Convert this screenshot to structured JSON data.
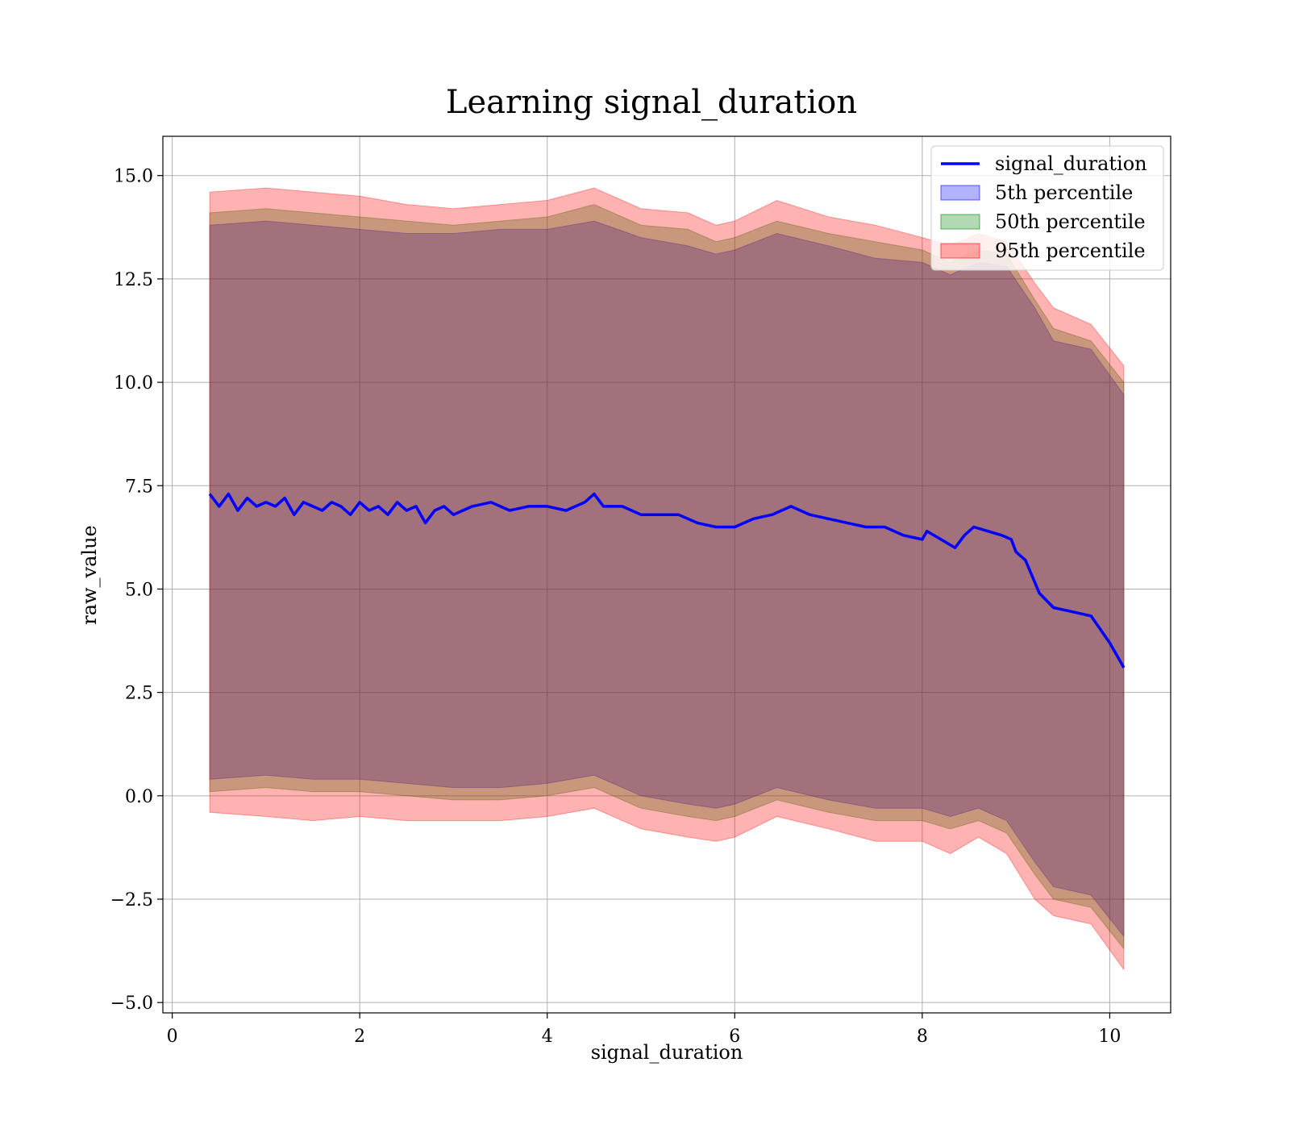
{
  "chart_data": {
    "type": "line",
    "title": "Learning signal_duration",
    "xlabel": "signal_duration",
    "ylabel": "raw_value",
    "xlim": [
      -0.1,
      10.65
    ],
    "ylim": [
      -5.25,
      15.95
    ],
    "x_ticks": [
      {
        "value": 0,
        "label": "0"
      },
      {
        "value": 2,
        "label": "2"
      },
      {
        "value": 4,
        "label": "4"
      },
      {
        "value": 6,
        "label": "6"
      },
      {
        "value": 8,
        "label": "8"
      },
      {
        "value": 10,
        "label": "10"
      }
    ],
    "y_ticks": [
      {
        "value": 15.0,
        "label": "15.0"
      },
      {
        "value": 12.5,
        "label": "12.5"
      },
      {
        "value": 10.0,
        "label": "10.0"
      },
      {
        "value": 7.5,
        "label": "7.5"
      },
      {
        "value": 5.0,
        "label": "5.0"
      },
      {
        "value": 2.5,
        "label": "2.5"
      },
      {
        "value": 0.0,
        "label": "0.0"
      },
      {
        "value": -2.5,
        "label": "−2.5"
      },
      {
        "value": -5.0,
        "label": "−5.0"
      }
    ],
    "grid": true,
    "legend_position": "top-right",
    "line": {
      "name": "signal_duration",
      "color": "#0000ff",
      "x": [
        0.4,
        0.5,
        0.6,
        0.7,
        0.8,
        0.9,
        1.0,
        1.1,
        1.2,
        1.3,
        1.4,
        1.5,
        1.6,
        1.7,
        1.8,
        1.9,
        2.0,
        2.1,
        2.2,
        2.3,
        2.4,
        2.5,
        2.6,
        2.7,
        2.8,
        2.9,
        3.0,
        3.2,
        3.4,
        3.6,
        3.8,
        4.0,
        4.2,
        4.4,
        4.5,
        4.6,
        4.8,
        5.0,
        5.2,
        5.4,
        5.6,
        5.8,
        6.0,
        6.2,
        6.4,
        6.6,
        6.8,
        7.0,
        7.2,
        7.4,
        7.6,
        7.8,
        8.0,
        8.05,
        8.2,
        8.35,
        8.45,
        8.55,
        8.7,
        8.85,
        8.95,
        9.0,
        9.1,
        9.25,
        9.4,
        9.6,
        9.8,
        10.0,
        10.15
      ],
      "y": [
        7.3,
        7.0,
        7.3,
        6.9,
        7.2,
        7.0,
        7.1,
        7.0,
        7.2,
        6.8,
        7.1,
        7.0,
        6.9,
        7.1,
        7.0,
        6.8,
        7.1,
        6.9,
        7.0,
        6.8,
        7.1,
        6.9,
        7.0,
        6.6,
        6.9,
        7.0,
        6.8,
        7.0,
        7.1,
        6.9,
        7.0,
        7.0,
        6.9,
        7.1,
        7.3,
        7.0,
        7.0,
        6.8,
        6.8,
        6.8,
        6.6,
        6.5,
        6.5,
        6.7,
        6.8,
        7.0,
        6.8,
        6.7,
        6.6,
        6.5,
        6.5,
        6.3,
        6.2,
        6.4,
        6.2,
        6.0,
        6.3,
        6.5,
        6.4,
        6.3,
        6.2,
        5.9,
        5.7,
        4.9,
        4.55,
        4.45,
        4.35,
        3.7,
        3.1
      ]
    },
    "series": [
      {
        "name": "5th percentile",
        "color": "#0000ff",
        "opacity": 0.3,
        "x": [
          0.4,
          1.0,
          1.5,
          2.0,
          2.5,
          3.0,
          3.5,
          4.0,
          4.5,
          5.0,
          5.5,
          5.8,
          6.0,
          6.45,
          7.0,
          7.5,
          8.0,
          8.3,
          8.6,
          8.9,
          9.2,
          9.4,
          9.8,
          10.15
        ],
        "upper": [
          13.8,
          13.9,
          13.8,
          13.7,
          13.6,
          13.6,
          13.7,
          13.7,
          13.9,
          13.5,
          13.3,
          13.1,
          13.2,
          13.6,
          13.3,
          13.0,
          12.9,
          12.6,
          12.9,
          12.8,
          11.8,
          11.0,
          10.8,
          9.7
        ],
        "lower": [
          0.4,
          0.5,
          0.4,
          0.4,
          0.3,
          0.2,
          0.2,
          0.3,
          0.5,
          0.0,
          -0.2,
          -0.3,
          -0.2,
          0.2,
          -0.1,
          -0.3,
          -0.3,
          -0.5,
          -0.3,
          -0.6,
          -1.6,
          -2.2,
          -2.4,
          -3.4
        ]
      },
      {
        "name": "50th percentile",
        "color": "#008000",
        "opacity": 0.3,
        "x": [
          0.4,
          1.0,
          1.5,
          2.0,
          2.5,
          3.0,
          3.5,
          4.0,
          4.5,
          5.0,
          5.5,
          5.8,
          6.0,
          6.45,
          7.0,
          7.5,
          8.0,
          8.3,
          8.6,
          8.9,
          9.2,
          9.4,
          9.8,
          10.15
        ],
        "upper": [
          14.1,
          14.2,
          14.1,
          14.0,
          13.9,
          13.8,
          13.9,
          14.0,
          14.3,
          13.8,
          13.7,
          13.4,
          13.5,
          13.9,
          13.6,
          13.4,
          13.2,
          12.9,
          13.2,
          13.1,
          12.0,
          11.3,
          11.0,
          10.0
        ],
        "lower": [
          0.1,
          0.2,
          0.1,
          0.1,
          0.0,
          -0.1,
          -0.1,
          0.0,
          0.2,
          -0.3,
          -0.5,
          -0.6,
          -0.5,
          -0.1,
          -0.4,
          -0.6,
          -0.6,
          -0.8,
          -0.6,
          -0.9,
          -1.9,
          -2.5,
          -2.7,
          -3.7
        ]
      },
      {
        "name": "95th percentile",
        "color": "#ff0000",
        "opacity": 0.3,
        "x": [
          0.4,
          1.0,
          1.5,
          2.0,
          2.5,
          3.0,
          3.5,
          4.0,
          4.5,
          5.0,
          5.5,
          5.8,
          6.0,
          6.45,
          7.0,
          7.5,
          8.0,
          8.3,
          8.6,
          8.9,
          9.2,
          9.4,
          9.8,
          10.15
        ],
        "upper": [
          14.6,
          14.7,
          14.6,
          14.5,
          14.3,
          14.2,
          14.3,
          14.4,
          14.7,
          14.2,
          14.1,
          13.8,
          13.9,
          14.4,
          14.0,
          13.8,
          13.5,
          13.3,
          13.6,
          13.4,
          12.4,
          11.8,
          11.4,
          10.4
        ],
        "lower": [
          -0.4,
          -0.5,
          -0.6,
          -0.5,
          -0.6,
          -0.6,
          -0.6,
          -0.5,
          -0.3,
          -0.8,
          -1.0,
          -1.1,
          -1.0,
          -0.5,
          -0.8,
          -1.1,
          -1.1,
          -1.4,
          -1.0,
          -1.4,
          -2.5,
          -2.9,
          -3.1,
          -4.2
        ]
      }
    ]
  }
}
